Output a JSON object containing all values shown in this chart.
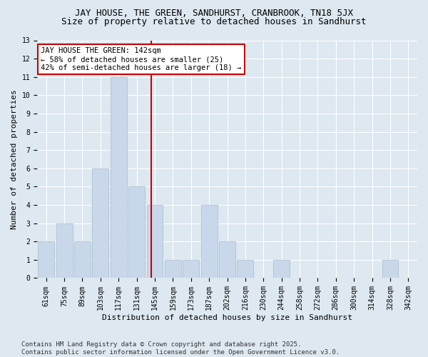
{
  "title1": "JAY HOUSE, THE GREEN, SANDHURST, CRANBROOK, TN18 5JX",
  "title2": "Size of property relative to detached houses in Sandhurst",
  "xlabel": "Distribution of detached houses by size in Sandhurst",
  "ylabel": "Number of detached properties",
  "categories": [
    "61sqm",
    "75sqm",
    "89sqm",
    "103sqm",
    "117sqm",
    "131sqm",
    "145sqm",
    "159sqm",
    "173sqm",
    "187sqm",
    "202sqm",
    "216sqm",
    "230sqm",
    "244sqm",
    "258sqm",
    "272sqm",
    "286sqm",
    "300sqm",
    "314sqm",
    "328sqm",
    "342sqm"
  ],
  "values": [
    2,
    3,
    2,
    6,
    11,
    5,
    4,
    1,
    1,
    4,
    2,
    1,
    0,
    1,
    0,
    0,
    0,
    0,
    0,
    1,
    0
  ],
  "bar_color": "#c8d8ea",
  "bar_edge_color": "#aabbcc",
  "highlight_line_color": "#cc0000",
  "annotation_text": "JAY HOUSE THE GREEN: 142sqm\n← 58% of detached houses are smaller (25)\n42% of semi-detached houses are larger (18) →",
  "annotation_box_color": "#ffffff",
  "annotation_box_edge_color": "#cc0000",
  "ylim": [
    0,
    13
  ],
  "yticks": [
    0,
    1,
    2,
    3,
    4,
    5,
    6,
    7,
    8,
    9,
    10,
    11,
    12,
    13
  ],
  "footnote": "Contains HM Land Registry data © Crown copyright and database right 2025.\nContains public sector information licensed under the Open Government Licence v3.0.",
  "background_color": "#dde8f0",
  "grid_color": "#ffffff",
  "title1_fontsize": 9,
  "title2_fontsize": 9,
  "axis_label_fontsize": 8,
  "tick_fontsize": 7,
  "annotation_fontsize": 7.5,
  "footnote_fontsize": 6.5
}
